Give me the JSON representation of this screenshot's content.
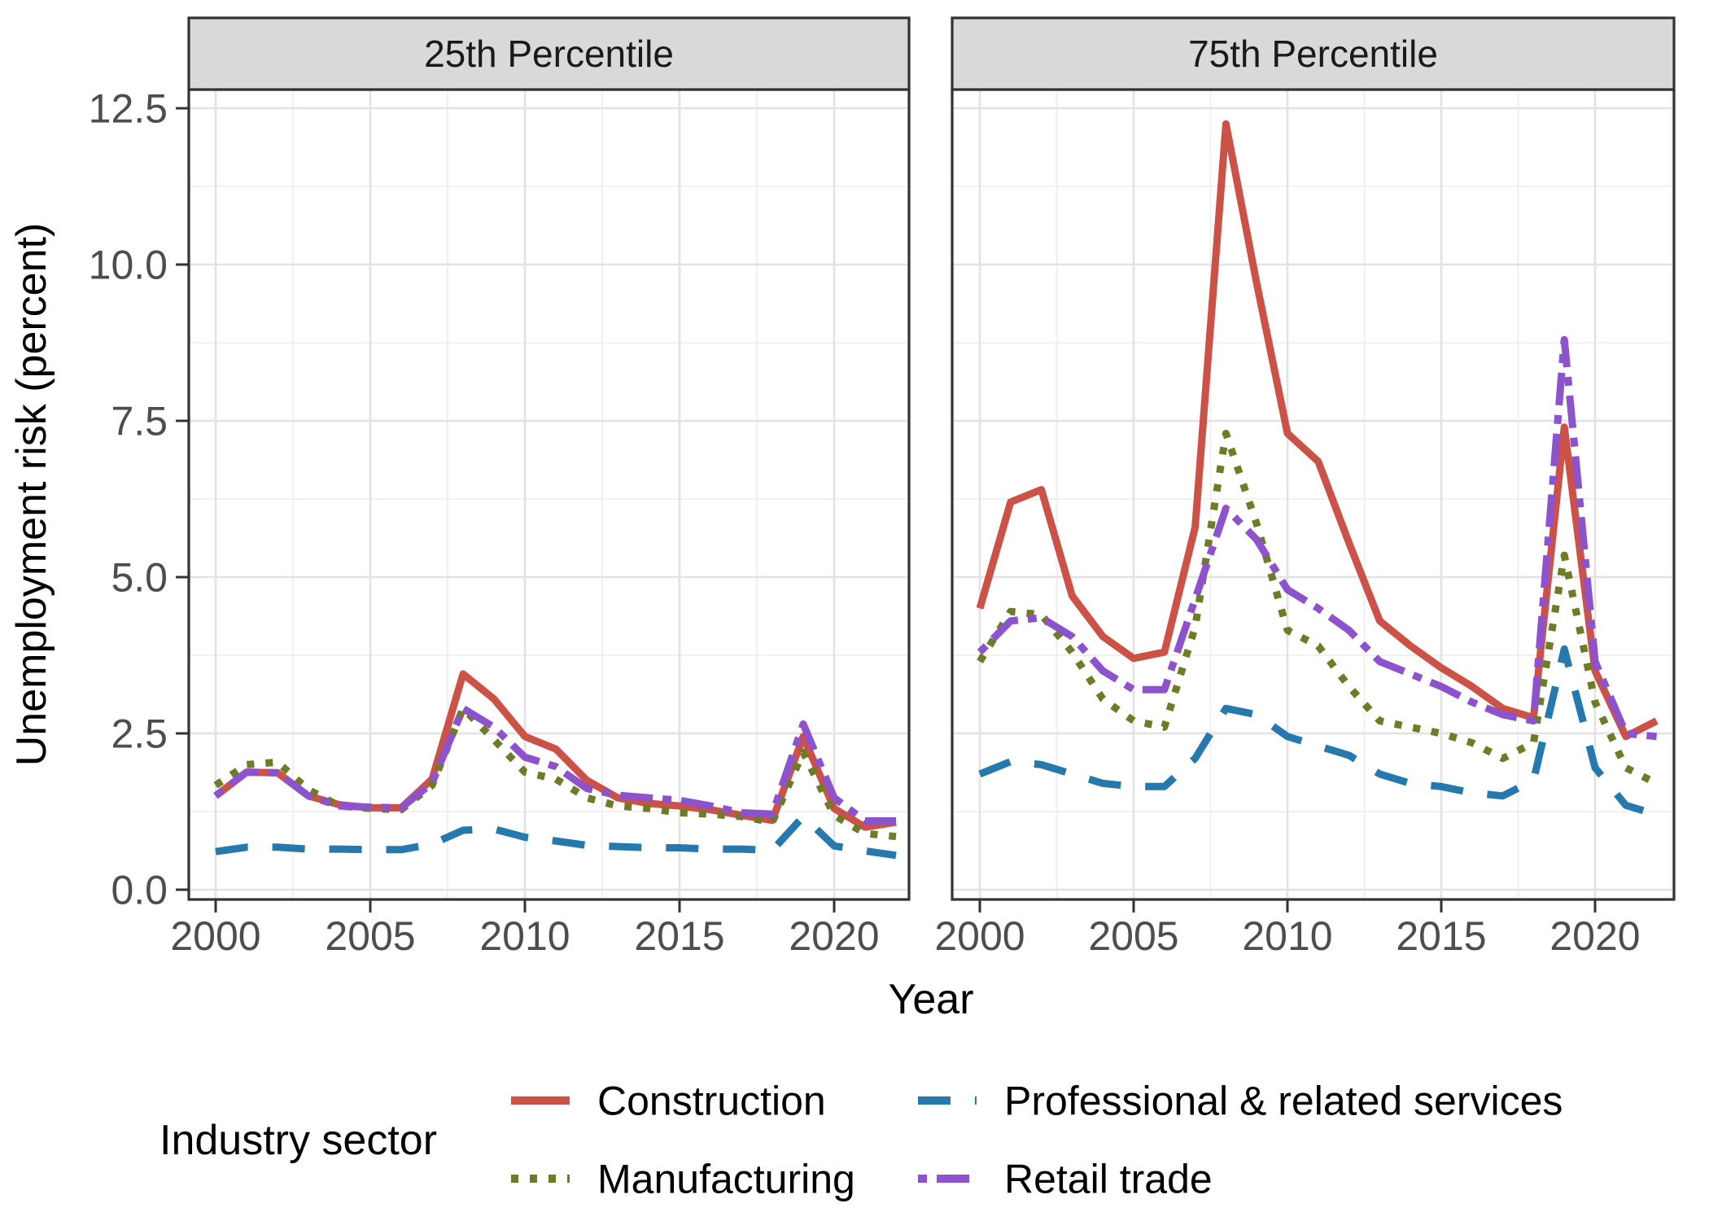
{
  "axes": {
    "x_title": "Year",
    "y_title": "Unemployment risk (percent)",
    "x_tick_labels": [
      "2000",
      "2005",
      "2010",
      "2015",
      "2020"
    ],
    "y_tick_labels": [
      "0.0",
      "2.5",
      "5.0",
      "7.5",
      "10.0",
      "12.5"
    ]
  },
  "legend": {
    "title": "Industry sector",
    "entries": [
      {
        "label": "Construction",
        "color": "#cc5146",
        "linetype": "solid"
      },
      {
        "label": "Manufacturing",
        "color": "#6e7b27",
        "linetype": "dotted"
      },
      {
        "label": "Professional & related services",
        "color": "#2579ad",
        "linetype": "dashed"
      },
      {
        "label": "Retail trade",
        "color": "#8d53cc",
        "linetype": "dotdash"
      }
    ]
  },
  "colors": {
    "strip_fill": "#d9d9d9",
    "panel_border": "#333333",
    "grid_major": "#e2e2e2",
    "grid_minor": "#efefef",
    "tick_text": "#4d4d4d"
  },
  "chart_data": {
    "type": "line",
    "title": "",
    "xlabel": "Year",
    "ylabel": "Unemployment risk (percent)",
    "ylim": [
      0,
      12.5
    ],
    "x_ticks": [
      2000,
      2005,
      2010,
      2015,
      2020
    ],
    "x_minor_ticks": [
      2002.5,
      2007.5,
      2012.5,
      2017.5,
      2022.5
    ],
    "y_ticks": [
      0,
      2.5,
      5,
      7.5,
      10,
      12.5
    ],
    "y_minor_ticks": [
      1.25,
      3.75,
      6.25,
      8.75,
      11.25
    ],
    "x": [
      2000,
      2001,
      2002,
      2003,
      2004,
      2005,
      2006,
      2007,
      2008,
      2009,
      2010,
      2011,
      2012,
      2013,
      2014,
      2015,
      2016,
      2017,
      2018,
      2019,
      2020,
      2021,
      2022
    ],
    "facets": [
      {
        "label": "25th Percentile",
        "series": [
          {
            "name": "Construction",
            "color": "#cc5146",
            "linetype": "solid",
            "values": [
              1.5,
              1.88,
              1.87,
              1.5,
              1.36,
              1.31,
              1.31,
              1.77,
              3.45,
              3.05,
              2.45,
              2.25,
              1.75,
              1.47,
              1.38,
              1.34,
              1.28,
              1.19,
              1.11,
              2.45,
              1.3,
              1.0,
              1.08
            ]
          },
          {
            "name": "Manufacturing",
            "color": "#6e7b27",
            "linetype": "dotted",
            "values": [
              1.67,
              2.0,
              2.04,
              1.6,
              1.34,
              1.3,
              1.28,
              1.67,
              2.9,
              2.4,
              1.88,
              1.77,
              1.47,
              1.34,
              1.3,
              1.23,
              1.21,
              1.17,
              1.08,
              2.2,
              1.19,
              0.9,
              0.85
            ]
          },
          {
            "name": "Professional & related services",
            "color": "#2579ad",
            "linetype": "dashed",
            "values": [
              0.61,
              0.68,
              0.68,
              0.65,
              0.65,
              0.64,
              0.64,
              0.73,
              0.95,
              0.97,
              0.84,
              0.78,
              0.71,
              0.69,
              0.67,
              0.67,
              0.65,
              0.65,
              0.63,
              1.17,
              0.7,
              0.62,
              0.55
            ]
          },
          {
            "name": "Retail trade",
            "color": "#8d53cc",
            "linetype": "dotdash",
            "values": [
              1.5,
              1.88,
              1.87,
              1.5,
              1.34,
              1.32,
              1.31,
              1.71,
              2.9,
              2.6,
              2.12,
              1.97,
              1.62,
              1.51,
              1.47,
              1.43,
              1.34,
              1.23,
              1.21,
              2.65,
              1.47,
              1.1,
              1.1
            ]
          }
        ]
      },
      {
        "label": "75th Percentile",
        "series": [
          {
            "name": "Construction",
            "color": "#cc5146",
            "linetype": "solid",
            "values": [
              4.5,
              6.2,
              6.4,
              4.7,
              4.05,
              3.7,
              3.8,
              5.8,
              12.25,
              9.7,
              7.3,
              6.85,
              5.55,
              4.3,
              3.9,
              3.55,
              3.25,
              2.9,
              2.75,
              7.4,
              3.5,
              2.45,
              2.7
            ]
          },
          {
            "name": "Manufacturing",
            "color": "#6e7b27",
            "linetype": "dotted",
            "values": [
              3.65,
              4.45,
              4.4,
              3.8,
              3.05,
              2.7,
              2.6,
              4.2,
              7.3,
              5.85,
              4.15,
              3.9,
              3.25,
              2.7,
              2.6,
              2.5,
              2.35,
              2.1,
              2.35,
              5.35,
              3.0,
              1.95,
              1.7
            ]
          },
          {
            "name": "Professional & related services",
            "color": "#2579ad",
            "linetype": "dashed",
            "values": [
              1.85,
              2.05,
              2.0,
              1.85,
              1.7,
              1.65,
              1.65,
              2.1,
              2.9,
              2.8,
              2.45,
              2.3,
              2.15,
              1.85,
              1.7,
              1.65,
              1.55,
              1.5,
              1.75,
              3.85,
              1.95,
              1.35,
              1.2
            ]
          },
          {
            "name": "Retail trade",
            "color": "#8d53cc",
            "linetype": "dotdash",
            "values": [
              3.8,
              4.3,
              4.35,
              4.05,
              3.5,
              3.2,
              3.2,
              4.65,
              6.1,
              5.6,
              4.8,
              4.5,
              4.15,
              3.65,
              3.45,
              3.25,
              3.0,
              2.8,
              2.7,
              8.8,
              3.65,
              2.5,
              2.45
            ]
          }
        ]
      }
    ]
  }
}
